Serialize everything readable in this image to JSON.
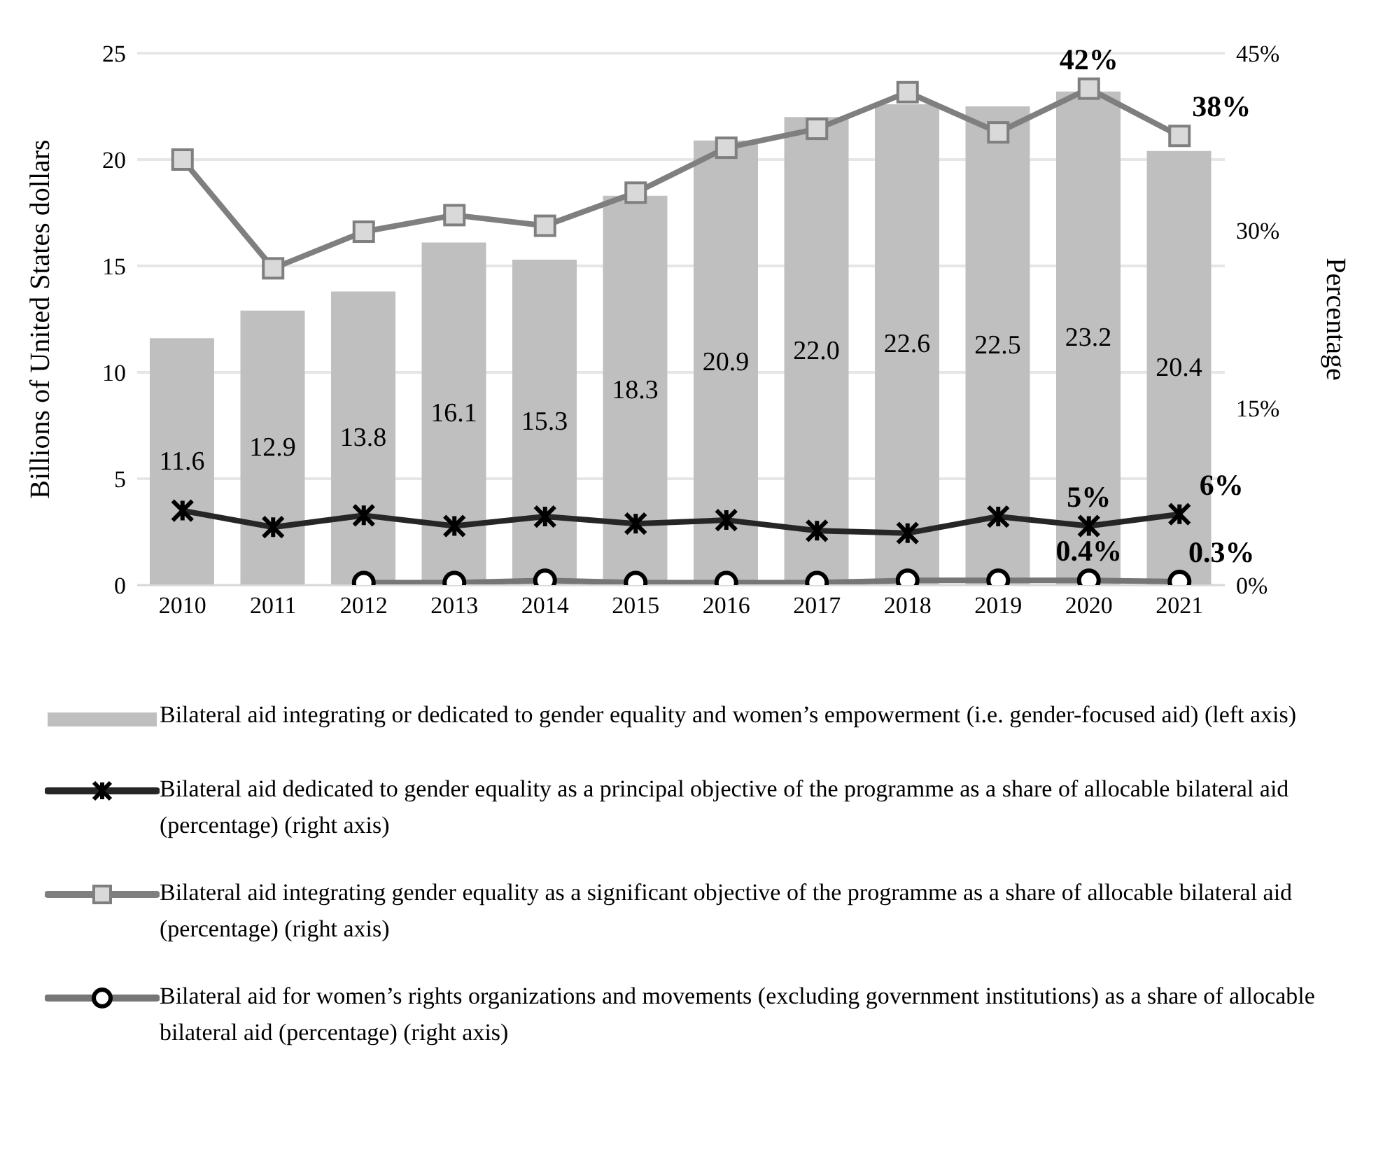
{
  "chart_data": {
    "type": "bar",
    "ylabel": "Billions of United States dollars",
    "y2label": "Percentage",
    "categories": [
      "2010",
      "2011",
      "2012",
      "2013",
      "2014",
      "2015",
      "2016",
      "2017",
      "2018",
      "2019",
      "2020",
      "2021"
    ],
    "series": [
      {
        "name": "Bilateral aid integrating  or dedicated to gender equality and women’s empowerment (i.e. gender-focused aid) (left axis)",
        "color": "#bfbfbf",
        "values": [
          11.6,
          12.9,
          13.8,
          16.1,
          15.3,
          18.3,
          20.9,
          22.0,
          22.6,
          22.5,
          23.2,
          20.4
        ],
        "value_labels": [
          "11.6",
          "12.9",
          "13.8",
          "16.1",
          "15.3",
          "18.3",
          "20.9",
          "22.0",
          "22.6",
          "22.5",
          "23.2",
          "20.4"
        ]
      },
      {
        "name": "Bilateral aid dedicated to gender equality as a principal objective of the programme as a share of allocable bilateral aid (percentage) (right axis)",
        "type": "line",
        "axis": "y2",
        "marker": "cross",
        "color": "#262626",
        "values": [
          6.3,
          4.9,
          5.9,
          5.0,
          5.8,
          5.2,
          5.5,
          4.6,
          4.4,
          5.8,
          5,
          6
        ],
        "value_labels": [
          null,
          null,
          null,
          null,
          null,
          null,
          null,
          null,
          null,
          null,
          "5%",
          "6%"
        ]
      },
      {
        "name": "Bilateral aid integrating gender equality as a significant objective of the programme as a share of allocable bilateral aid (percentage) (right axis)",
        "type": "line",
        "axis": "y2",
        "marker": "square",
        "color": "#7f7f7f",
        "values": [
          36.0,
          26.8,
          29.9,
          31.3,
          30.4,
          33.2,
          37.0,
          38.6,
          41.7,
          38.3,
          42,
          38
        ],
        "value_labels": [
          null,
          null,
          null,
          null,
          null,
          null,
          null,
          null,
          null,
          null,
          "42%",
          "38%"
        ]
      },
      {
        "name": "Bilateral aid for women’s rights organizations and movements (excluding government institutions) as a share of allocable bilateral aid (percentage) (right axis)",
        "type": "line",
        "axis": "y2",
        "marker": "circle",
        "color": "#767676",
        "values": [
          null,
          null,
          0.2,
          0.2,
          0.4,
          0.2,
          0.2,
          0.2,
          0.4,
          0.4,
          0.4,
          0.3
        ],
        "value_labels": [
          null,
          null,
          null,
          null,
          null,
          null,
          null,
          null,
          null,
          null,
          "0.4%",
          "0.3%"
        ]
      }
    ],
    "ylim": [
      0,
      25
    ],
    "yticks": [
      0,
      5,
      10,
      15,
      20,
      25
    ],
    "y2lim": [
      0,
      45
    ],
    "y2ticks": [
      {
        "value": 0,
        "label": "0%"
      },
      {
        "value": 15,
        "label": "15%"
      },
      {
        "value": 30,
        "label": "30%"
      },
      {
        "value": 45,
        "label": "45%"
      }
    ],
    "grid": "y",
    "legend": "bottom"
  }
}
